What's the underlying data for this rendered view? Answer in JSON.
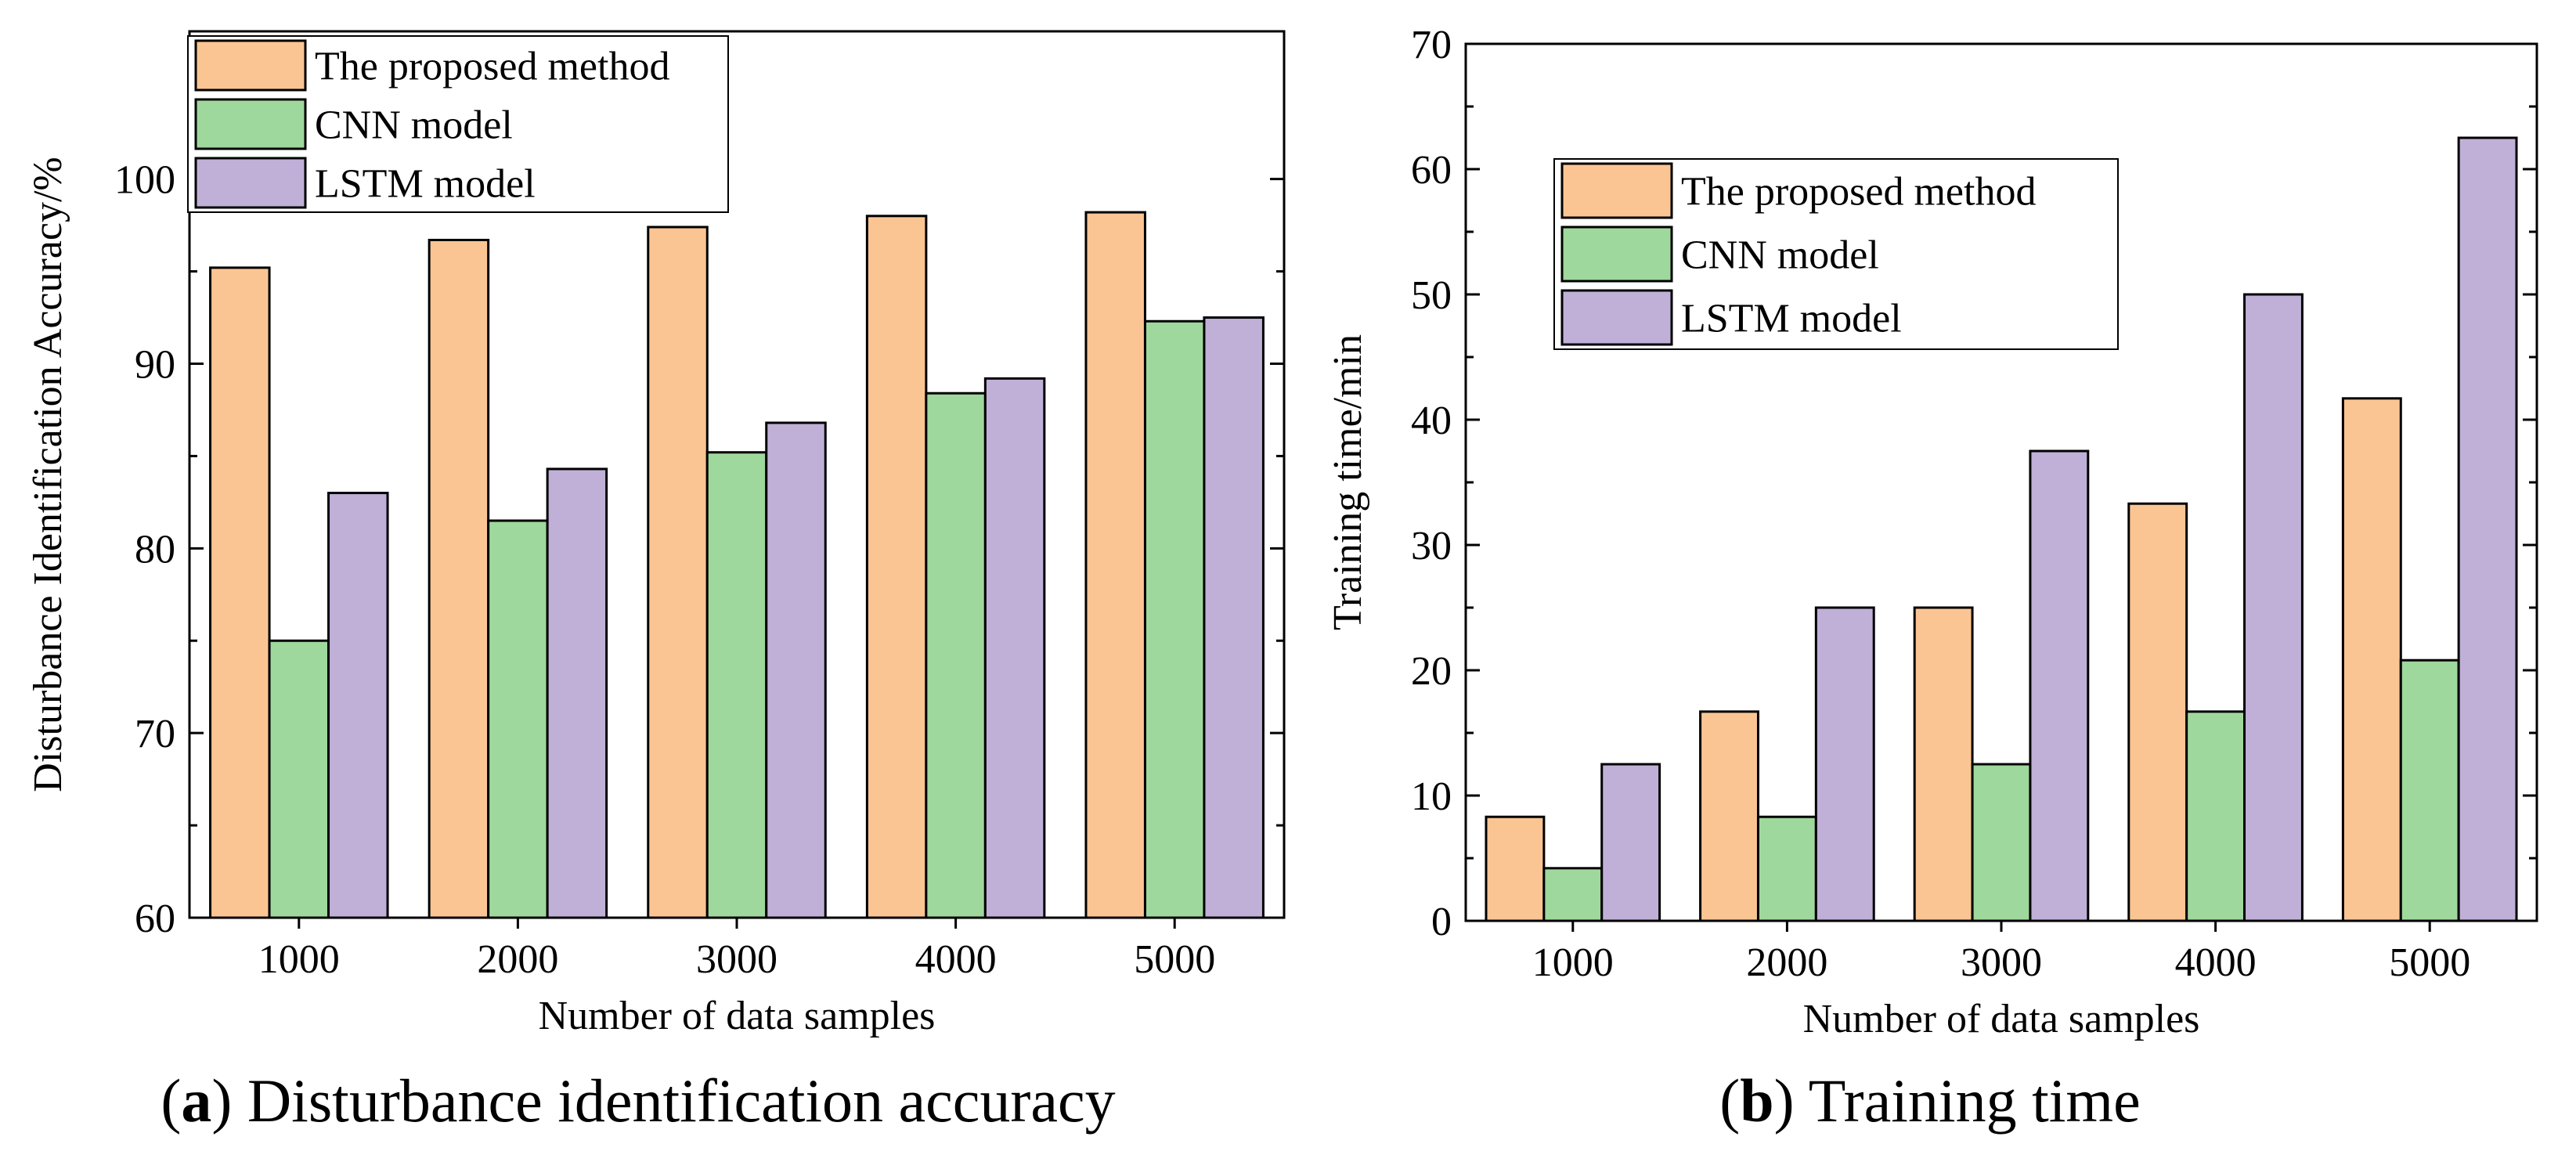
{
  "colors": {
    "proposed": "#FBC593",
    "cnn": "#9FD89C",
    "lstm": "#C0B0D8"
  },
  "chart_data": [
    {
      "type": "bar",
      "title": "Disturbance identification accuracy",
      "caption_letter": "a",
      "caption_text": "Disturbance identification accuracy",
      "categories": [
        "1000",
        "2000",
        "3000",
        "4000",
        "5000"
      ],
      "series": [
        {
          "name": "The proposed method",
          "values": [
            95.2,
            96.7,
            97.4,
            98.0,
            98.2
          ]
        },
        {
          "name": "CNN model",
          "values": [
            75.0,
            81.5,
            85.2,
            88.4,
            92.3
          ]
        },
        {
          "name": "LSTM model",
          "values": [
            83.0,
            84.3,
            86.8,
            89.2,
            92.5
          ]
        }
      ],
      "xlabel": "Number of data samples",
      "ylabel": "Disturbance Identification Accuracy/%",
      "ylim": [
        60,
        108
      ],
      "yticks": [
        "60",
        "70",
        "80",
        "90",
        "100"
      ],
      "legend": "top-left",
      "grid": false
    },
    {
      "type": "bar",
      "title": "Training time",
      "caption_letter": "b",
      "caption_text": "Training time",
      "categories": [
        "1000",
        "2000",
        "3000",
        "4000",
        "5000"
      ],
      "series": [
        {
          "name": "The proposed method",
          "values": [
            8.3,
            16.7,
            25.0,
            33.3,
            41.7
          ]
        },
        {
          "name": "CNN model",
          "values": [
            4.2,
            8.3,
            12.5,
            16.7,
            20.8
          ]
        },
        {
          "name": "LSTM model",
          "values": [
            12.5,
            25.0,
            37.5,
            50.0,
            62.5
          ]
        }
      ],
      "xlabel": "Number of data samples",
      "ylabel": "Training time/min",
      "ylim": [
        0,
        70
      ],
      "yticks": [
        "0",
        "10",
        "20",
        "30",
        "40",
        "50",
        "60",
        "70"
      ],
      "legend": "top-left",
      "grid": false
    }
  ]
}
